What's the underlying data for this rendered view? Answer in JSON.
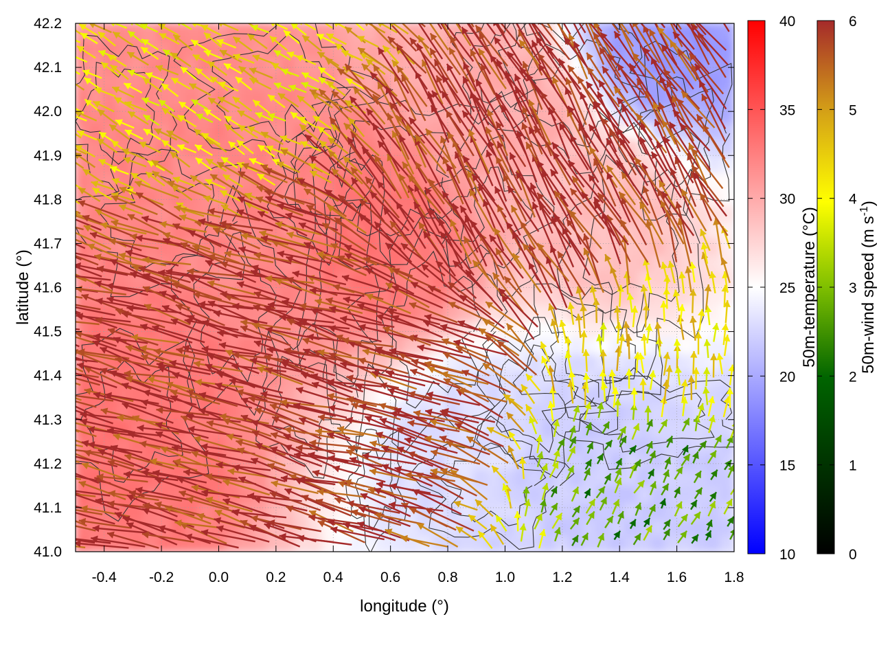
{
  "chart_data": {
    "type": "heatmap",
    "title": "",
    "xlabel": "longitude (°)",
    "ylabel": "latitude (°)",
    "xlim": [
      -0.5,
      1.8
    ],
    "ylim": [
      41.0,
      42.2
    ],
    "x_ticks": [
      "-0.4",
      "-0.2",
      "0.0",
      "0.2",
      "0.4",
      "0.6",
      "0.8",
      "1.0",
      "1.2",
      "1.4",
      "1.6",
      "1.8"
    ],
    "y_ticks": [
      "41.0",
      "41.1",
      "41.2",
      "41.3",
      "41.4",
      "41.5",
      "41.6",
      "41.7",
      "41.8",
      "41.9",
      "42.0",
      "42.1",
      "42.2"
    ],
    "grid": true,
    "overlays": [
      "temperature field",
      "topographic contour lines",
      "wind vectors"
    ],
    "colorbars": [
      {
        "label": "50m-temperature (°C)",
        "range": [
          10,
          40
        ],
        "ticks": [
          "10",
          "15",
          "20",
          "25",
          "30",
          "35",
          "40"
        ],
        "colors": [
          "#0000ff",
          "#ffffff",
          "#ff0000"
        ],
        "mid_value": 25
      },
      {
        "label_main": "50m-wind speed (m s",
        "label_sup": "-1",
        "label_end": ")",
        "range": [
          0,
          6
        ],
        "ticks": [
          "0",
          "1",
          "2",
          "3",
          "4",
          "5",
          "6"
        ],
        "colors": [
          "#000000",
          "#006400",
          "#7fbf00",
          "#ffff00",
          "#d4a017",
          "#a52a2a"
        ]
      }
    ],
    "temperature_field": {
      "description_regions": [
        {
          "lon": -0.3,
          "lat": 41.3,
          "t": 33
        },
        {
          "lon": 0.0,
          "lat": 41.8,
          "t": 32
        },
        {
          "lon": 0.6,
          "lat": 41.7,
          "t": 33
        },
        {
          "lon": 1.0,
          "lat": 42.0,
          "t": 30
        },
        {
          "lon": 1.3,
          "lat": 41.8,
          "t": 29
        },
        {
          "lon": 1.2,
          "lat": 41.2,
          "t": 22
        },
        {
          "lon": 1.6,
          "lat": 41.05,
          "t": 22
        },
        {
          "lon": 1.55,
          "lat": 42.15,
          "t": 19
        },
        {
          "lon": 0.9,
          "lat": 41.25,
          "t": 23
        }
      ]
    },
    "wind_regime": [
      {
        "lon_range": [
          -0.5,
          1.2
        ],
        "lat_range": [
          41.0,
          41.7
        ],
        "direction_deg": 165,
        "speed": 6
      },
      {
        "lon_range": [
          0.6,
          1.4
        ],
        "lat_range": [
          41.6,
          42.0
        ],
        "direction_deg": 120,
        "speed": 6
      },
      {
        "lon_range": [
          1.1,
          1.8
        ],
        "lat_range": [
          41.0,
          41.3
        ],
        "direction_deg": 60,
        "speed": 2
      },
      {
        "lon_range": [
          1.2,
          1.8
        ],
        "lat_range": [
          41.3,
          41.5
        ],
        "direction_deg": 90,
        "speed": 4
      },
      {
        "lon_range": [
          -0.5,
          0.4
        ],
        "lat_range": [
          41.9,
          42.2
        ],
        "direction_deg": 150,
        "speed": 4
      }
    ]
  }
}
